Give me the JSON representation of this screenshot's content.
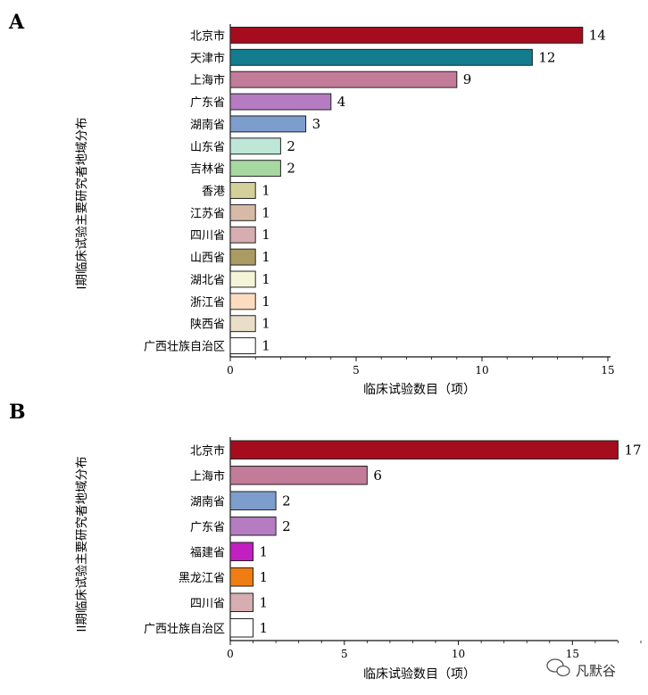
{
  "watermark": "凡默谷",
  "chart_data": [
    {
      "type": "bar",
      "orientation": "horizontal",
      "panel": "A",
      "ylabel": "I期临床试验主要研究者地域分布",
      "xlabel": "临床试验数目（项）",
      "xlim": [
        0,
        15
      ],
      "xticks": [
        0,
        5,
        10,
        15
      ],
      "categories": [
        "北京市",
        "天津市",
        "上海市",
        "广东省",
        "湖南省",
        "山东省",
        "吉林省",
        "香港",
        "江苏省",
        "四川省",
        "山西省",
        "湖北省",
        "浙江省",
        "陕西省",
        "广西壮族自治区"
      ],
      "values": [
        14,
        12,
        9,
        4,
        3,
        2,
        2,
        1,
        1,
        1,
        1,
        1,
        1,
        1,
        1
      ],
      "colors": [
        "#a50d1e",
        "#137c8f",
        "#c27b98",
        "#b57cc2",
        "#7d9dcc",
        "#bfe7d8",
        "#a6d8a0",
        "#d4d09a",
        "#d6b9a6",
        "#d6adb0",
        "#a99b62",
        "#f4f5d8",
        "#fbdcc0",
        "#e9dfc8",
        "#ffffff"
      ]
    },
    {
      "type": "bar",
      "orientation": "horizontal",
      "panel": "B",
      "ylabel": "II期临床试验主要研究者地域分布",
      "xlabel": "临床试验数目（项）",
      "xlim": [
        0,
        18
      ],
      "xticks": [
        0,
        5,
        10,
        15
      ],
      "categories": [
        "北京市",
        "上海市",
        "湖南省",
        "广东省",
        "福建省",
        "黑龙江省",
        "四川省",
        "广西壮族自治区"
      ],
      "values": [
        17,
        6,
        2,
        2,
        1,
        1,
        1,
        1
      ],
      "colors": [
        "#a50d1e",
        "#c27b98",
        "#7d9dcc",
        "#b57cc2",
        "#c21fc0",
        "#f07d12",
        "#d6adb0",
        "#ffffff"
      ]
    }
  ]
}
